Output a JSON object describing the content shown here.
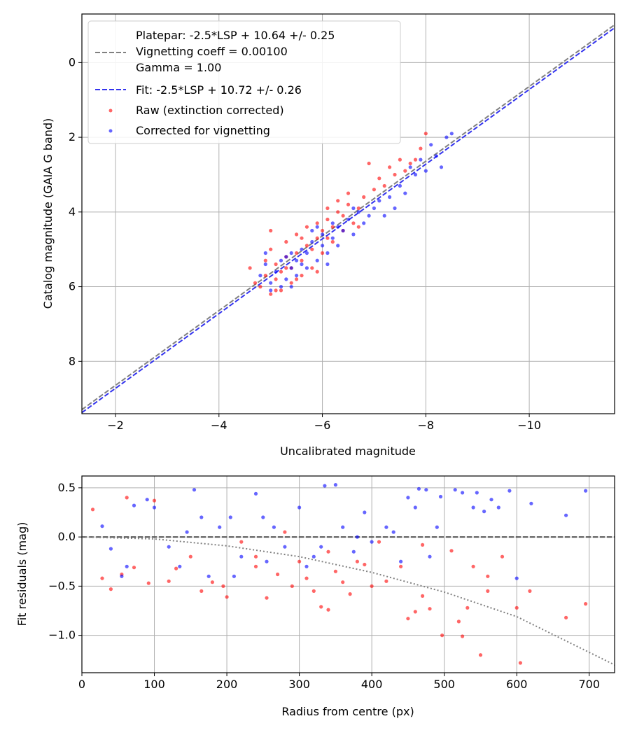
{
  "chart_data": [
    {
      "type": "scatter",
      "xlabel": "Uncalibrated magnitude",
      "ylabel": "Catalog magnitude (GAIA G band)",
      "xlim": [
        -1.35,
        -11.65
      ],
      "ylim": [
        9.4,
        -1.3
      ],
      "xticks": [
        -2,
        -4,
        -6,
        -8,
        -10
      ],
      "yticks": [
        0,
        2,
        4,
        6,
        8
      ],
      "grid": true,
      "legend_position": "upper-left",
      "legend": {
        "platepar_line1": "Platepar: -2.5*LSP + 10.64 +/- 0.25",
        "platepar_line2": "Vignetting coeff = 0.00100",
        "platepar_line3": "Gamma = 1.00",
        "fit": "Fit: -2.5*LSP + 10.72 +/- 0.26",
        "raw": "Raw (extinction corrected)",
        "corrected": "Corrected for vignetting"
      },
      "lines": [
        {
          "name": "Platepar",
          "slope": 1,
          "intercept": 10.64,
          "color": "#808080",
          "style": "dashed"
        },
        {
          "name": "Fit",
          "slope": 1,
          "intercept": 10.72,
          "color": "#3333ee",
          "style": "dashed"
        }
      ],
      "series": [
        {
          "name": "Raw (extinction corrected)",
          "color": "#ff0000",
          "points": [
            [
              -4.6,
              5.5
            ],
            [
              -4.7,
              5.9
            ],
            [
              -4.8,
              6.0
            ],
            [
              -4.9,
              5.7
            ],
            [
              -4.9,
              5.3
            ],
            [
              -5.0,
              6.2
            ],
            [
              -5.0,
              5.0
            ],
            [
              -5.1,
              5.8
            ],
            [
              -5.1,
              5.4
            ],
            [
              -5.2,
              6.1
            ],
            [
              -5.2,
              5.6
            ],
            [
              -5.3,
              5.2
            ],
            [
              -5.3,
              4.8
            ],
            [
              -5.4,
              5.9
            ],
            [
              -5.4,
              5.5
            ],
            [
              -5.5,
              5.1
            ],
            [
              -5.5,
              4.6
            ],
            [
              -5.6,
              5.7
            ],
            [
              -5.6,
              5.3
            ],
            [
              -5.7,
              4.9
            ],
            [
              -5.7,
              4.4
            ],
            [
              -5.8,
              5.5
            ],
            [
              -5.8,
              5.0
            ],
            [
              -5.9,
              4.7
            ],
            [
              -5.9,
              4.3
            ],
            [
              -6.0,
              5.1
            ],
            [
              -6.0,
              4.5
            ],
            [
              -6.1,
              4.2
            ],
            [
              -6.1,
              3.9
            ],
            [
              -6.2,
              4.8
            ],
            [
              -6.2,
              4.4
            ],
            [
              -6.3,
              4.0
            ],
            [
              -6.3,
              3.7
            ],
            [
              -6.4,
              4.5
            ],
            [
              -6.4,
              4.1
            ],
            [
              -6.5,
              3.8
            ],
            [
              -6.5,
              3.5
            ],
            [
              -6.6,
              4.3
            ],
            [
              -6.7,
              3.9
            ],
            [
              -6.8,
              3.6
            ],
            [
              -6.9,
              2.7
            ],
            [
              -7.0,
              3.4
            ],
            [
              -7.2,
              3.3
            ],
            [
              -7.3,
              2.8
            ],
            [
              -7.4,
              3.0
            ],
            [
              -7.5,
              2.6
            ],
            [
              -7.6,
              2.9
            ],
            [
              -7.7,
              2.7
            ],
            [
              -7.8,
              2.6
            ],
            [
              -7.9,
              2.3
            ],
            [
              -8.0,
              1.9
            ],
            [
              -5.0,
              4.5
            ],
            [
              -5.3,
              5.5
            ],
            [
              -5.6,
              4.7
            ],
            [
              -6.1,
              4.7
            ],
            [
              -6.7,
              4.4
            ],
            [
              -7.1,
              3.1
            ],
            [
              -5.1,
              6.1
            ],
            [
              -5.5,
              5.8
            ],
            [
              -5.9,
              5.6
            ]
          ]
        },
        {
          "name": "Corrected for vignetting",
          "color": "#0000ff",
          "points": [
            [
              -4.8,
              5.7
            ],
            [
              -4.9,
              5.4
            ],
            [
              -5.0,
              5.9
            ],
            [
              -5.1,
              5.6
            ],
            [
              -5.2,
              6.0
            ],
            [
              -5.2,
              5.3
            ],
            [
              -5.3,
              5.8
            ],
            [
              -5.4,
              5.5
            ],
            [
              -5.4,
              5.1
            ],
            [
              -5.5,
              5.7
            ],
            [
              -5.5,
              5.3
            ],
            [
              -5.6,
              5.0
            ],
            [
              -5.7,
              5.5
            ],
            [
              -5.7,
              5.1
            ],
            [
              -5.8,
              4.8
            ],
            [
              -5.8,
              4.5
            ],
            [
              -5.9,
              5.3
            ],
            [
              -6.0,
              4.9
            ],
            [
              -6.0,
              4.6
            ],
            [
              -6.1,
              5.1
            ],
            [
              -6.2,
              4.7
            ],
            [
              -6.2,
              4.3
            ],
            [
              -6.3,
              4.9
            ],
            [
              -6.4,
              4.5
            ],
            [
              -6.5,
              4.2
            ],
            [
              -6.6,
              4.6
            ],
            [
              -6.7,
              4.0
            ],
            [
              -6.8,
              4.3
            ],
            [
              -6.9,
              4.1
            ],
            [
              -7.0,
              3.9
            ],
            [
              -7.2,
              4.1
            ],
            [
              -7.3,
              3.6
            ],
            [
              -7.4,
              3.9
            ],
            [
              -7.5,
              3.3
            ],
            [
              -7.6,
              3.5
            ],
            [
              -7.8,
              3.0
            ],
            [
              -7.9,
              2.6
            ],
            [
              -8.0,
              2.9
            ],
            [
              -8.1,
              2.2
            ],
            [
              -8.2,
              2.5
            ],
            [
              -8.3,
              2.8
            ],
            [
              -8.4,
              2.0
            ],
            [
              -8.5,
              1.9
            ],
            [
              -4.9,
              5.1
            ],
            [
              -5.3,
              5.2
            ],
            [
              -5.6,
              5.4
            ],
            [
              -5.9,
              4.4
            ],
            [
              -6.3,
              4.4
            ],
            [
              -6.6,
              3.9
            ],
            [
              -7.1,
              3.7
            ],
            [
              -7.7,
              2.8
            ],
            [
              -5.0,
              6.1
            ],
            [
              -5.4,
              6.0
            ],
            [
              -6.1,
              5.4
            ]
          ]
        }
      ]
    },
    {
      "type": "scatter",
      "xlabel": "Radius from centre (px)",
      "ylabel": "Fit residuals (mag)",
      "xlim": [
        0,
        735
      ],
      "ylim": [
        -1.38,
        0.62
      ],
      "xticks": [
        0,
        100,
        200,
        300,
        400,
        500,
        600,
        700
      ],
      "yticks": [
        0.5,
        0.0,
        -0.5,
        -1.0
      ],
      "grid": true,
      "lines": [
        {
          "name": "zero",
          "y": 0,
          "color": "#555555",
          "style": "dashed"
        },
        {
          "name": "vignetting model",
          "color": "#808080",
          "style": "dotted",
          "points": [
            [
              0,
              0
            ],
            [
              100,
              -0.02
            ],
            [
              200,
              -0.09
            ],
            [
              300,
              -0.2
            ],
            [
              400,
              -0.36
            ],
            [
              500,
              -0.56
            ],
            [
              600,
              -0.81
            ],
            [
              735,
              -1.3
            ]
          ]
        }
      ],
      "series": [
        {
          "name": "Raw (extinction corrected)",
          "color": "#ff0000",
          "points": [
            [
              15,
              0.28
            ],
            [
              28,
              -0.42
            ],
            [
              40,
              -0.53
            ],
            [
              55,
              -0.38
            ],
            [
              62,
              0.4
            ],
            [
              72,
              -0.31
            ],
            [
              92,
              -0.47
            ],
            [
              100,
              0.37
            ],
            [
              130,
              -0.32
            ],
            [
              150,
              -0.2
            ],
            [
              165,
              -0.55
            ],
            [
              180,
              -0.46
            ],
            [
              195,
              -0.5
            ],
            [
              200,
              -0.61
            ],
            [
              220,
              -0.05
            ],
            [
              240,
              -0.2
            ],
            [
              255,
              -0.62
            ],
            [
              270,
              -0.38
            ],
            [
              290,
              -0.5
            ],
            [
              300,
              -0.25
            ],
            [
              310,
              -0.42
            ],
            [
              320,
              -0.55
            ],
            [
              330,
              -0.71
            ],
            [
              340,
              -0.74
            ],
            [
              350,
              -0.35
            ],
            [
              360,
              -0.46
            ],
            [
              370,
              -0.58
            ],
            [
              380,
              -0.25
            ],
            [
              390,
              -0.28
            ],
            [
              400,
              -0.5
            ],
            [
              420,
              -0.45
            ],
            [
              440,
              -0.3
            ],
            [
              450,
              -0.83
            ],
            [
              460,
              -0.76
            ],
            [
              470,
              -0.6
            ],
            [
              480,
              -0.73
            ],
            [
              497,
              -1.0
            ],
            [
              510,
              -0.14
            ],
            [
              520,
              -0.86
            ],
            [
              525,
              -1.01
            ],
            [
              532,
              -0.72
            ],
            [
              540,
              -0.3
            ],
            [
              550,
              -1.2
            ],
            [
              560,
              -0.55
            ],
            [
              580,
              -0.2
            ],
            [
              600,
              -0.72
            ],
            [
              605,
              -1.28
            ],
            [
              618,
              -0.55
            ],
            [
              668,
              -0.82
            ],
            [
              695,
              -0.68
            ],
            [
              120,
              -0.45
            ],
            [
              240,
              -0.3
            ],
            [
              280,
              0.05
            ],
            [
              340,
              -0.15
            ],
            [
              410,
              -0.05
            ],
            [
              470,
              -0.08
            ],
            [
              560,
              -0.4
            ]
          ]
        },
        {
          "name": "Corrected for vignetting",
          "color": "#0000ff",
          "points": [
            [
              28,
              0.11
            ],
            [
              40,
              -0.12
            ],
            [
              55,
              -0.4
            ],
            [
              62,
              -0.3
            ],
            [
              72,
              0.32
            ],
            [
              90,
              0.38
            ],
            [
              100,
              0.3
            ],
            [
              120,
              -0.1
            ],
            [
              135,
              -0.3
            ],
            [
              145,
              0.05
            ],
            [
              155,
              0.48
            ],
            [
              165,
              0.2
            ],
            [
              175,
              -0.4
            ],
            [
              190,
              0.1
            ],
            [
              205,
              0.2
            ],
            [
              220,
              -0.2
            ],
            [
              240,
              0.44
            ],
            [
              255,
              -0.25
            ],
            [
              265,
              0.1
            ],
            [
              280,
              -0.1
            ],
            [
              300,
              0.3
            ],
            [
              310,
              -0.3
            ],
            [
              320,
              -0.2
            ],
            [
              335,
              0.52
            ],
            [
              350,
              0.53
            ],
            [
              360,
              0.1
            ],
            [
              375,
              -0.15
            ],
            [
              390,
              0.25
            ],
            [
              400,
              -0.05
            ],
            [
              420,
              0.1
            ],
            [
              440,
              -0.25
            ],
            [
              450,
              0.4
            ],
            [
              460,
              0.3
            ],
            [
              465,
              0.49
            ],
            [
              475,
              0.48
            ],
            [
              490,
              0.1
            ],
            [
              495,
              0.41
            ],
            [
              515,
              0.48
            ],
            [
              525,
              0.45
            ],
            [
              545,
              0.45
            ],
            [
              555,
              0.26
            ],
            [
              565,
              0.38
            ],
            [
              575,
              0.3
            ],
            [
              590,
              0.47
            ],
            [
              600,
              -0.42
            ],
            [
              620,
              0.34
            ],
            [
              668,
              0.22
            ],
            [
              695,
              0.47
            ],
            [
              210,
              -0.4
            ],
            [
              250,
              0.2
            ],
            [
              330,
              -0.1
            ],
            [
              380,
              0.0
            ],
            [
              430,
              0.05
            ],
            [
              480,
              -0.2
            ],
            [
              540,
              0.3
            ]
          ]
        }
      ]
    }
  ]
}
